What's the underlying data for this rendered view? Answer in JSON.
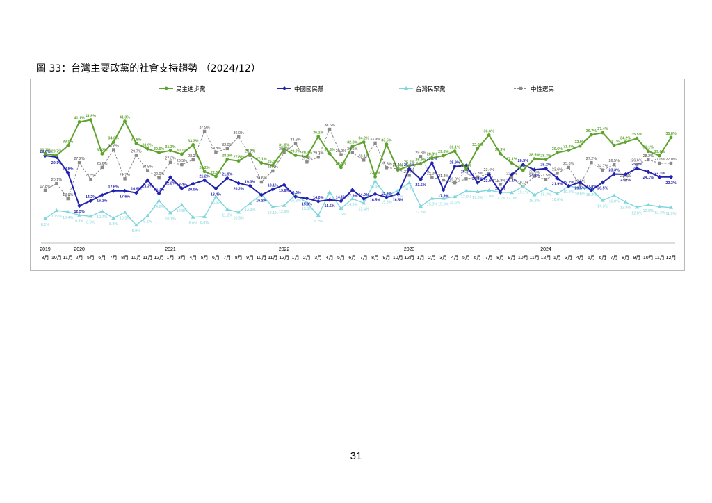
{
  "page": {
    "title": "圖 33：台灣主要政黨的社會支持趨勢 （2024/12）",
    "page_number": "31"
  },
  "colors": {
    "dpp": "#5ea32e",
    "kmt": "#2222b0",
    "tpp": "#7fd6dc",
    "neutral": "#8a8a8a"
  },
  "chart_data": {
    "type": "line",
    "title": "",
    "ylim": [
      0,
      45
    ],
    "legend_position": "top",
    "grid": false,
    "categories": [
      "8月",
      "10月",
      "11月",
      "2月",
      "5月",
      "6月",
      "7月",
      "8月",
      "10月",
      "11月",
      "12月",
      "1月",
      "3月",
      "4月",
      "5月",
      "6月",
      "7月",
      "8月",
      "9月",
      "10月",
      "11月",
      "12月",
      "1月",
      "2月",
      "3月",
      "4月",
      "5月",
      "6月",
      "7月",
      "8月",
      "9月",
      "10月",
      "12月",
      "1月",
      "2月",
      "3月",
      "4月",
      "5月",
      "6月",
      "7月",
      "8月",
      "9月",
      "10月",
      "11月",
      "12月",
      "1月",
      "3月",
      "4月",
      "5月",
      "6月",
      "7月",
      "8月",
      "9月",
      "10月",
      "11月",
      "12月"
    ],
    "year_labels": [
      {
        "label": "2019",
        "index": 0
      },
      {
        "label": "2020",
        "index": 3
      },
      {
        "label": "2021",
        "index": 11
      },
      {
        "label": "2022",
        "index": 21
      },
      {
        "label": "2023",
        "index": 32
      },
      {
        "label": "2024",
        "index": 44
      }
    ],
    "series": [
      {
        "name": "民主進步黨",
        "key": "dpp",
        "marker": "circle",
        "values": [
          30.2,
          29.7,
          33.0,
          41.1,
          41.8,
          30.2,
          34.2,
          41.3,
          33.8,
          31.9,
          30.6,
          31.3,
          30.1,
          33.3,
          24.2,
          22.5,
          28.3,
          27.8,
          30.1,
          27.1,
          26.3,
          31.8,
          29.7,
          29.3,
          36.1,
          30.3,
          25.6,
          32.8,
          34.2,
          22.4,
          33.5,
          24.7,
          26.1,
          26.9,
          28.8,
          29.6,
          31.1,
          24.9,
          32.0,
          36.6,
          30.3,
          27.1,
          24.6,
          28.5,
          28.3,
          30.6,
          31.4,
          32.9,
          36.7,
          37.4,
          33.1,
          34.2,
          35.5,
          31.1,
          29.6,
          35.8
        ]
      },
      {
        "name": "中國國民黨",
        "key": "kmt",
        "marker": "diamond",
        "values": [
          29.6,
          29.1,
          23.8,
          12.5,
          14.2,
          16.2,
          17.6,
          17.6,
          16.9,
          21.2,
          16.7,
          22.2,
          18.4,
          20.0,
          21.2,
          18.4,
          21.9,
          20.2,
          19.3,
          16.2,
          18.1,
          19.6,
          15.6,
          15.0,
          14.0,
          14.5,
          14.1,
          17.9,
          14.9,
          16.5,
          15.4,
          16.5,
          25.1,
          21.5,
          27.1,
          17.9,
          25.9,
          26.2,
          20.4,
          23.0,
          17.1,
          23.1,
          26.5,
          24.8,
          25.2,
          21.9,
          19.2,
          20.5,
          17.8,
          20.5,
          23.3,
          23.2,
          25.3,
          24.1,
          22.3,
          22.3
        ]
      },
      {
        "name": "台灣民眾黨",
        "key": "tpp",
        "marker": "triangle",
        "values": [
          8.1,
          10.9,
          10.4,
          9.3,
          8.9,
          10.7,
          8.3,
          10.3,
          5.9,
          9.1,
          14.2,
          10.1,
          12.8,
          8.6,
          8.8,
          15.6,
          11.3,
          10.3,
          13.3,
          16.4,
          12.1,
          12.6,
          16.2,
          13.5,
          9.2,
          17.1,
          11.6,
          14.9,
          13.4,
          20.9,
          15.8,
          17.7,
          20.3,
          12.3,
          15.0,
          15.0,
          15.6,
          17.5,
          17.3,
          17.8,
          17.1,
          17.0,
          19.1,
          16.2,
          18.3,
          16.6,
          19.2,
          18.6,
          18.2,
          14.3,
          16.0,
          13.8,
          12.0,
          12.8,
          12.2,
          11.9
        ]
      },
      {
        "name": "中性選民",
        "key": "neutral",
        "marker": "square",
        "values": [
          17.8,
          20.1,
          14.9,
          27.2,
          21.5,
          25.6,
          31.6,
          21.7,
          29.7,
          24.5,
          22.0,
          27.3,
          26.5,
          28.2,
          37.9,
          30.8,
          32.0,
          36.0,
          29.7,
          20.6,
          24.4,
          30.6,
          33.8,
          27.4,
          29.1,
          38.6,
          29.9,
          30.6,
          28.1,
          33.9,
          25.5,
          25.1,
          22.9,
          29.3,
          22.2,
          21.3,
          20.3,
          21.7,
          22.3,
          23.4,
          19.8,
          22.1,
          19.1,
          22.6,
          21.5,
          23.6,
          25.6,
          19.5,
          27.2,
          24.7,
          26.5,
          21.3,
          26.6,
          28.2,
          27.0,
          27.0
        ]
      }
    ]
  }
}
